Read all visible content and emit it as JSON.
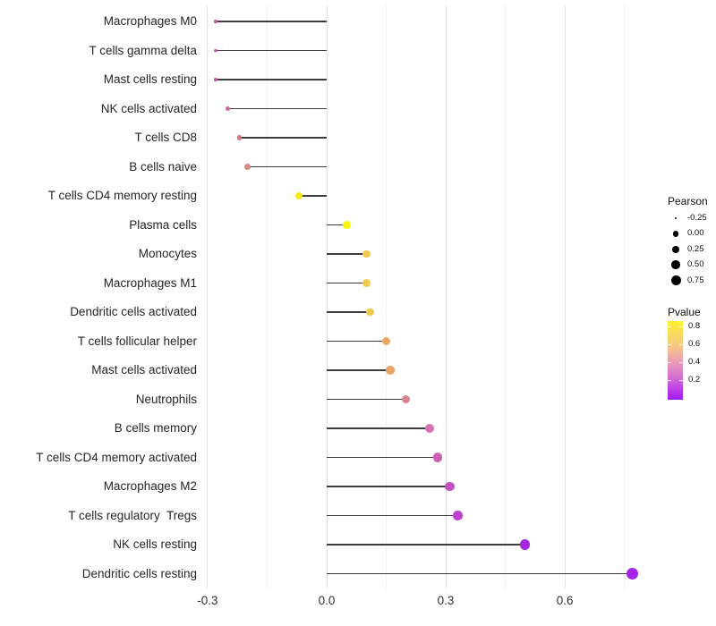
{
  "chart_data": {
    "type": "lollipop",
    "orientation": "horizontal",
    "title": "",
    "xlabel": "",
    "ylabel": "",
    "xlim": [
      -0.32,
      0.82
    ],
    "baseline": 0.0,
    "x_ticks": [
      -0.3,
      0.0,
      0.3,
      0.6
    ],
    "x_tick_labels": [
      "-0.3",
      "0.0",
      "0.3",
      "0.6"
    ],
    "x_minor_gridlines": [
      -0.15,
      0.15,
      0.45,
      0.75
    ],
    "grid": "on",
    "size_encoding": "Pearson",
    "color_encoding": "Pvalue",
    "rows": [
      {
        "label": "Macrophages M0",
        "pearson": -0.28,
        "pvalue_approx": 0.28,
        "color": "#c05ba1",
        "radius": 1.8
      },
      {
        "label": "T cells gamma delta",
        "pearson": -0.28,
        "pvalue_approx": 0.28,
        "color": "#c05ba1",
        "radius": 1.8
      },
      {
        "label": "Mast cells resting",
        "pearson": -0.28,
        "pvalue_approx": 0.28,
        "color": "#c05ba1",
        "radius": 1.8
      },
      {
        "label": "NK cells activated",
        "pearson": -0.25,
        "pvalue_approx": 0.33,
        "color": "#cb6b9d",
        "radius": 2.4
      },
      {
        "label": "T cells CD8",
        "pearson": -0.22,
        "pvalue_approx": 0.42,
        "color": "#d2737f",
        "radius": 2.9
      },
      {
        "label": "B cells naive",
        "pearson": -0.2,
        "pvalue_approx": 0.47,
        "color": "#dd8680",
        "radius": 3.3
      },
      {
        "label": "T cells CD4 memory resting",
        "pearson": -0.07,
        "pvalue_approx": 0.8,
        "color": "#f5e91c",
        "radius": 4.2
      },
      {
        "label": "Plasma cells",
        "pearson": 0.05,
        "pvalue_approx": 0.85,
        "color": "#fcf407",
        "radius": 4.4
      },
      {
        "label": "Monocytes",
        "pearson": 0.1,
        "pvalue_approx": 0.7,
        "color": "#f1ca4f",
        "radius": 4.4
      },
      {
        "label": "Macrophages M1",
        "pearson": 0.1,
        "pvalue_approx": 0.7,
        "color": "#f1ca4f",
        "radius": 4.4
      },
      {
        "label": "Dendritic cells activated",
        "pearson": 0.11,
        "pvalue_approx": 0.7,
        "color": "#f1c94f",
        "radius": 4.4
      },
      {
        "label": "T cells follicular helper",
        "pearson": 0.15,
        "pvalue_approx": 0.6,
        "color": "#eeaa63",
        "radius": 4.6
      },
      {
        "label": "Mast cells activated",
        "pearson": 0.16,
        "pvalue_approx": 0.58,
        "color": "#eba566",
        "radius": 4.6
      },
      {
        "label": "Neutrophils",
        "pearson": 0.2,
        "pvalue_approx": 0.44,
        "color": "#d9838e",
        "radius": 4.8
      },
      {
        "label": "B cells memory",
        "pearson": 0.26,
        "pvalue_approx": 0.35,
        "color": "#d473ae",
        "radius": 5.0
      },
      {
        "label": "T cells CD4 memory activated",
        "pearson": 0.28,
        "pvalue_approx": 0.3,
        "color": "#cb5fb4",
        "radius": 5.1
      },
      {
        "label": "Macrophages M2",
        "pearson": 0.31,
        "pvalue_approx": 0.26,
        "color": "#c44fc0",
        "radius": 5.2
      },
      {
        "label": "T cells regulatory  Tregs",
        "pearson": 0.33,
        "pvalue_approx": 0.22,
        "color": "#bc41cd",
        "radius": 5.3
      },
      {
        "label": "NK cells resting",
        "pearson": 0.5,
        "pvalue_approx": 0.12,
        "color": "#a228e2",
        "radius": 5.7
      },
      {
        "label": "Dendritic cells resting",
        "pearson": 0.77,
        "pvalue_approx": 0.11,
        "color": "#a524e8",
        "radius": 6.5
      }
    ]
  },
  "legend": {
    "size": {
      "title": "Pearson",
      "entries": [
        {
          "label": "-0.25",
          "radius": 1.3
        },
        {
          "label": "0.00",
          "radius": 3.3
        },
        {
          "label": "0.25",
          "radius": 4.1
        },
        {
          "label": "0.50",
          "radius": 4.8
        },
        {
          "label": "0.75",
          "radius": 5.5
        }
      ],
      "dot_color": "#000000"
    },
    "color": {
      "title": "Pvalue",
      "tick_labels": [
        "0.8",
        "0.6",
        "0.4",
        "0.2"
      ],
      "gradient_stops": [
        "#fcf22c",
        "#f9dc5c",
        "#f6cb80",
        "#efaba5",
        "#e18cc4",
        "#d064d6",
        "#b93ae8",
        "#a01bf2"
      ],
      "gradient_positions_pct": [
        0,
        15,
        30,
        45,
        60,
        75,
        88,
        100
      ]
    }
  },
  "style": {
    "background": "#ffffff",
    "stem_color": "#3d3d3d",
    "major_grid_color": "#e3e3e3",
    "minor_grid_color": "#f1f1f1",
    "axis_text_color": "#262626"
  }
}
